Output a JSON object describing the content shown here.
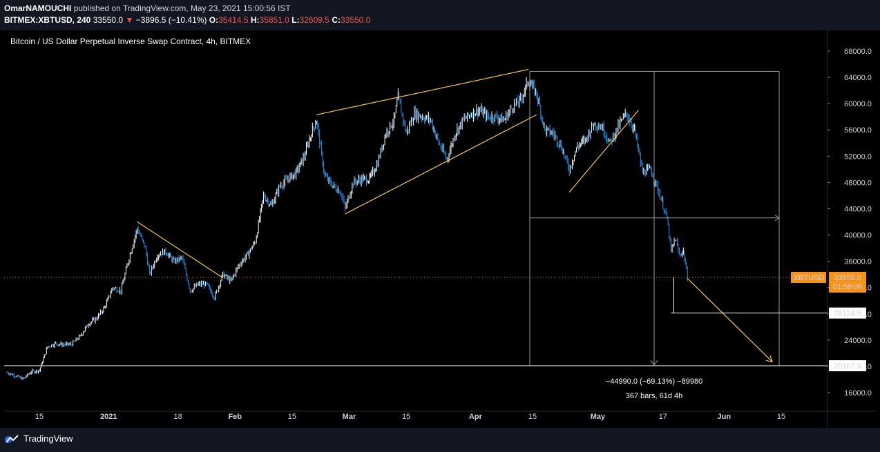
{
  "header": {
    "author": "OmarNAMOUCHI",
    "published_text": "published on TradingView.com, May 23, 2021 15:00:56 IST",
    "symbol": "BITMEX:XBTUSD, 240",
    "last": "33550.0",
    "change": "−3896.5 (−10.41%)",
    "o_label": "O:",
    "o_val": "35414.5",
    "h_label": "H:",
    "h_val": "35851.0",
    "l_label": "L:",
    "l_val": "32609.5",
    "c_label": "C:",
    "c_val": "33550.0"
  },
  "footer": {
    "brand": "TradingView"
  },
  "colors": {
    "candle_up": "#ffffff",
    "candle_down": "#2196f3",
    "trendline": "#f7c948",
    "price_tag": "#f7931a",
    "level_line": "#ffffff",
    "measure_box": "#9598a1"
  },
  "chart_data": {
    "type": "candlestick",
    "title": "Bitcoin / US Dollar Perpetual Inverse Swap Contract, 4h, BITMEX",
    "y_axis": {
      "ticks": [
        "68000.0",
        "64000.0",
        "60000.0",
        "56000.0",
        "52000.0",
        "48000.0",
        "44000.0",
        "40000.0",
        "36000.0",
        "32000.0",
        "28000.0",
        "24000.0",
        "20000.0",
        "16000.0"
      ],
      "range": [
        15000,
        69000
      ],
      "side": "right"
    },
    "x_axis": {
      "ticks": [
        "15",
        "2021",
        "18",
        "Feb",
        "15",
        "Mar",
        "15",
        "Apr",
        "15",
        "May",
        "17",
        "Jun",
        "15"
      ]
    },
    "series": [
      {
        "values": [
          [
            "2020-12-07",
            19100
          ],
          [
            "2020-12-09",
            18600
          ],
          [
            "2020-12-11",
            18100
          ],
          [
            "2020-12-13",
            19200
          ],
          [
            "2020-12-15",
            19400
          ],
          [
            "2020-12-17",
            23000
          ],
          [
            "2020-12-19",
            23500
          ],
          [
            "2020-12-21",
            23300
          ],
          [
            "2020-12-23",
            23400
          ],
          [
            "2020-12-25",
            24600
          ],
          [
            "2020-12-27",
            26500
          ],
          [
            "2020-12-29",
            27300
          ],
          [
            "2020-12-31",
            29000
          ],
          [
            "2021-01-02",
            32000
          ],
          [
            "2021-01-04",
            31500
          ],
          [
            "2021-01-06",
            36500
          ],
          [
            "2021-01-08",
            41000
          ],
          [
            "2021-01-10",
            38000
          ],
          [
            "2021-01-11",
            34000
          ],
          [
            "2021-01-13",
            37000
          ],
          [
            "2021-01-15",
            37500
          ],
          [
            "2021-01-17",
            36000
          ],
          [
            "2021-01-19",
            36500
          ],
          [
            "2021-01-21",
            31500
          ],
          [
            "2021-01-23",
            32500
          ],
          [
            "2021-01-25",
            32500
          ],
          [
            "2021-01-27",
            30500
          ],
          [
            "2021-01-29",
            34000
          ],
          [
            "2021-01-31",
            33000
          ],
          [
            "2021-02-02",
            35500
          ],
          [
            "2021-02-04",
            37000
          ],
          [
            "2021-02-06",
            39000
          ],
          [
            "2021-02-08",
            46000
          ],
          [
            "2021-02-10",
            44500
          ],
          [
            "2021-02-12",
            47500
          ],
          [
            "2021-02-14",
            48500
          ],
          [
            "2021-02-16",
            49500
          ],
          [
            "2021-02-18",
            52000
          ],
          [
            "2021-02-20",
            56000
          ],
          [
            "2021-02-21",
            57500
          ],
          [
            "2021-02-23",
            49000
          ],
          [
            "2021-02-25",
            47500
          ],
          [
            "2021-02-27",
            46500
          ],
          [
            "2021-02-28",
            44000
          ],
          [
            "2021-03-02",
            48000
          ],
          [
            "2021-03-04",
            48500
          ],
          [
            "2021-03-06",
            48500
          ],
          [
            "2021-03-08",
            51000
          ],
          [
            "2021-03-10",
            55500
          ],
          [
            "2021-03-12",
            57500
          ],
          [
            "2021-03-13",
            61000
          ],
          [
            "2021-03-15",
            55500
          ],
          [
            "2021-03-17",
            58500
          ],
          [
            "2021-03-19",
            58000
          ],
          [
            "2021-03-21",
            57500
          ],
          [
            "2021-03-23",
            54000
          ],
          [
            "2021-03-25",
            51500
          ],
          [
            "2021-03-27",
            55500
          ],
          [
            "2021-03-29",
            57500
          ],
          [
            "2021-03-31",
            58500
          ],
          [
            "2021-04-02",
            59000
          ],
          [
            "2021-04-04",
            58000
          ],
          [
            "2021-04-06",
            58000
          ],
          [
            "2021-04-08",
            57500
          ],
          [
            "2021-04-10",
            59500
          ],
          [
            "2021-04-12",
            60500
          ],
          [
            "2021-04-14",
            63500
          ],
          [
            "2021-04-16",
            61500
          ],
          [
            "2021-04-18",
            56000
          ],
          [
            "2021-04-20",
            55500
          ],
          [
            "2021-04-22",
            53500
          ],
          [
            "2021-04-24",
            50000
          ],
          [
            "2021-04-26",
            53500
          ],
          [
            "2021-04-28",
            54500
          ],
          [
            "2021-04-30",
            57000
          ],
          [
            "2021-05-02",
            56500
          ],
          [
            "2021-05-04",
            54000
          ],
          [
            "2021-05-06",
            56500
          ],
          [
            "2021-05-08",
            58500
          ],
          [
            "2021-05-10",
            56000
          ],
          [
            "2021-05-12",
            49500
          ],
          [
            "2021-05-14",
            50000
          ],
          [
            "2021-05-16",
            46500
          ],
          [
            "2021-05-17",
            44500
          ],
          [
            "2021-05-18",
            42500
          ],
          [
            "2021-05-19",
            37500
          ],
          [
            "2021-05-20",
            39500
          ],
          [
            "2021-05-21",
            37000
          ],
          [
            "2021-05-22",
            37500
          ],
          [
            "2021-05-23",
            33550
          ]
        ]
      }
    ],
    "annotations": {
      "last_price_label": "XBTUSD",
      "last_price": "33550.0",
      "countdown": "01:59:06",
      "level_1": "28124.5",
      "level_2": "20107.5",
      "measure_line1": "−44990.0 (−69.13%) −89980",
      "measure_line2": "367 bars, 61d 4h"
    },
    "grid": false,
    "legend": "none"
  }
}
